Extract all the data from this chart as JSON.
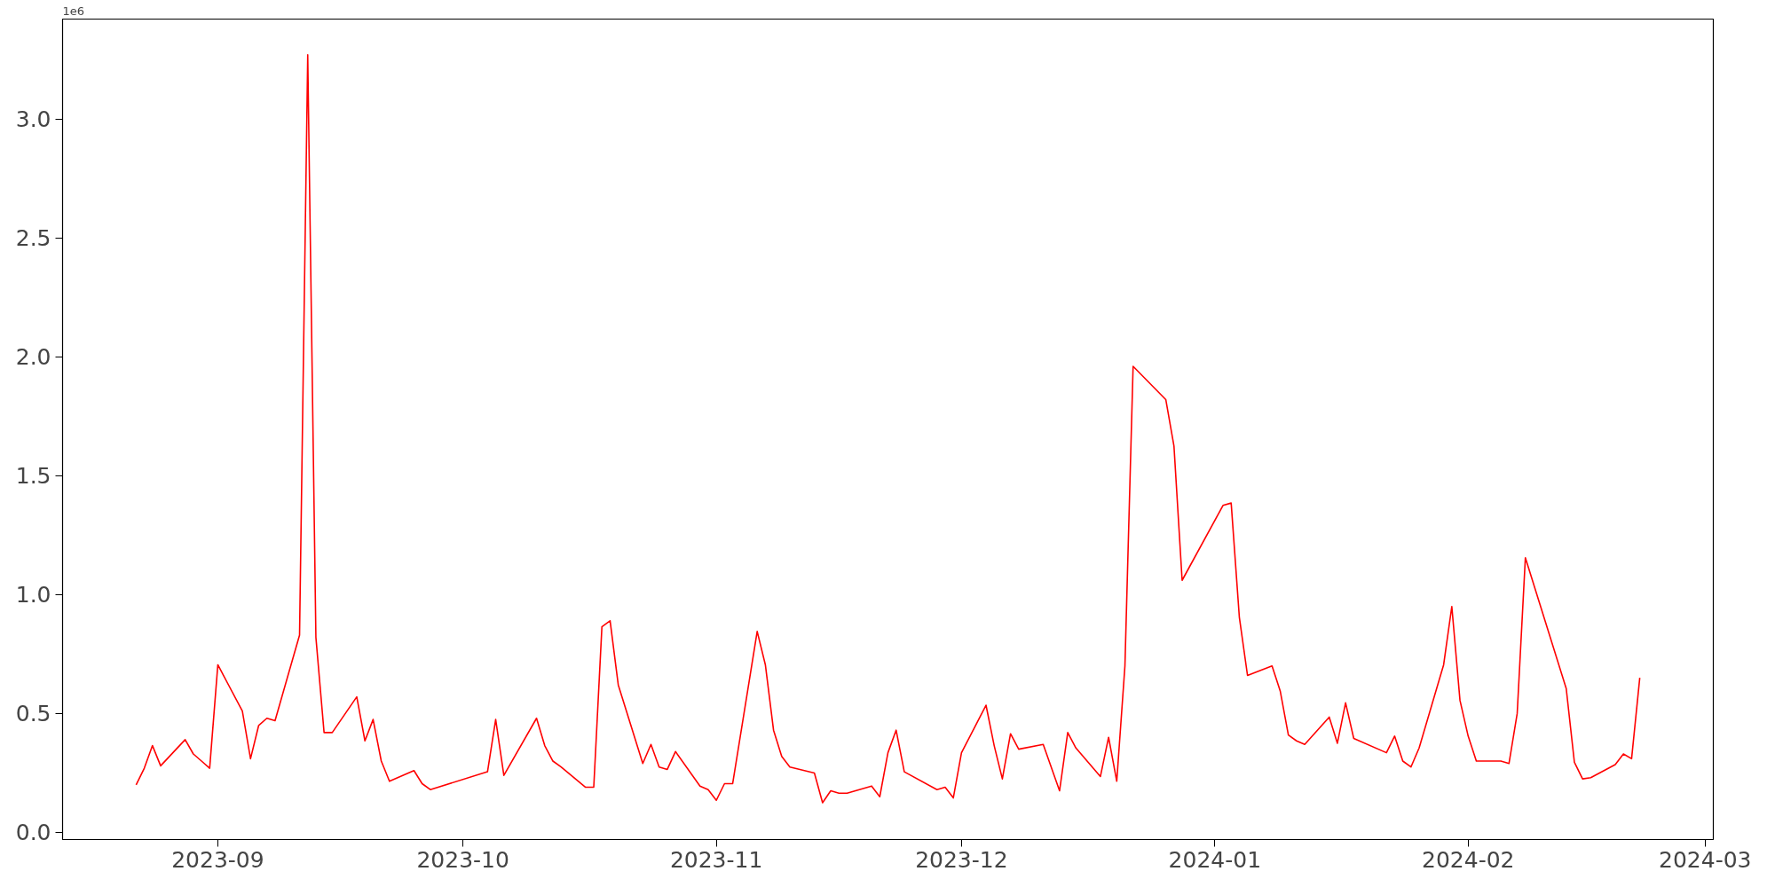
{
  "chart_data": {
    "type": "line",
    "annotations": [
      "1e6"
    ],
    "x": [
      "2023-08-22",
      "2023-08-23",
      "2023-08-24",
      "2023-08-25",
      "2023-08-28",
      "2023-08-29",
      "2023-08-30",
      "2023-08-31",
      "2023-09-01",
      "2023-09-04",
      "2023-09-05",
      "2023-09-06",
      "2023-09-07",
      "2023-09-08",
      "2023-09-11",
      "2023-09-12",
      "2023-09-13",
      "2023-09-14",
      "2023-09-15",
      "2023-09-18",
      "2023-09-19",
      "2023-09-20",
      "2023-09-21",
      "2023-09-22",
      "2023-09-25",
      "2023-09-26",
      "2023-09-27",
      "2023-10-04",
      "2023-10-05",
      "2023-10-06",
      "2023-10-10",
      "2023-10-11",
      "2023-10-12",
      "2023-10-13",
      "2023-10-16",
      "2023-10-17",
      "2023-10-18",
      "2023-10-19",
      "2023-10-20",
      "2023-10-23",
      "2023-10-24",
      "2023-10-25",
      "2023-10-26",
      "2023-10-27",
      "2023-10-30",
      "2023-10-31",
      "2023-11-01",
      "2023-11-02",
      "2023-11-03",
      "2023-11-06",
      "2023-11-07",
      "2023-11-08",
      "2023-11-09",
      "2023-11-10",
      "2023-11-13",
      "2023-11-14",
      "2023-11-15",
      "2023-11-16",
      "2023-11-17",
      "2023-11-20",
      "2023-11-21",
      "2023-11-22",
      "2023-11-23",
      "2023-11-24",
      "2023-11-28",
      "2023-11-29",
      "2023-11-30",
      "2023-12-01",
      "2023-12-04",
      "2023-12-05",
      "2023-12-06",
      "2023-12-07",
      "2023-12-08",
      "2023-12-11",
      "2023-12-13",
      "2023-12-14",
      "2023-12-15",
      "2023-12-18",
      "2023-12-19",
      "2023-12-20",
      "2023-12-21",
      "2023-12-22",
      "2023-12-26",
      "2023-12-27",
      "2023-12-28",
      "2024-01-02",
      "2024-01-03",
      "2024-01-04",
      "2024-01-05",
      "2024-01-08",
      "2024-01-09",
      "2024-01-10",
      "2024-01-11",
      "2024-01-12",
      "2024-01-15",
      "2024-01-16",
      "2024-01-17",
      "2024-01-18",
      "2024-01-22",
      "2024-01-23",
      "2024-01-24",
      "2024-01-25",
      "2024-01-26",
      "2024-01-29",
      "2024-01-30",
      "2024-01-31",
      "2024-02-01",
      "2024-02-02",
      "2024-02-05",
      "2024-02-06",
      "2024-02-07",
      "2024-02-08",
      "2024-02-13",
      "2024-02-14",
      "2024-02-15",
      "2024-02-16",
      "2024-02-19",
      "2024-02-20",
      "2024-02-21",
      "2024-02-22"
    ],
    "series": [
      {
        "color": "#ff0000",
        "values": [
          0.2,
          0.27,
          0.365,
          0.28,
          0.39,
          0.33,
          0.3,
          0.27,
          0.705,
          0.51,
          0.31,
          0.45,
          0.48,
          0.47,
          0.83,
          3.27,
          0.82,
          0.42,
          0.42,
          0.57,
          0.385,
          0.475,
          0.3,
          0.215,
          0.26,
          0.205,
          0.18,
          0.255,
          0.475,
          0.24,
          0.48,
          0.365,
          0.3,
          0.275,
          0.19,
          0.19,
          0.865,
          0.89,
          0.62,
          0.29,
          0.37,
          0.275,
          0.265,
          0.34,
          0.195,
          0.18,
          0.135,
          0.205,
          0.205,
          0.845,
          0.705,
          0.43,
          0.32,
          0.275,
          0.25,
          0.125,
          0.175,
          0.165,
          0.165,
          0.195,
          0.15,
          0.335,
          0.43,
          0.255,
          0.18,
          0.19,
          0.145,
          0.335,
          0.535,
          0.365,
          0.225,
          0.415,
          0.35,
          0.37,
          0.175,
          0.42,
          0.355,
          0.235,
          0.4,
          0.215,
          0.7,
          1.96,
          1.82,
          1.625,
          1.06,
          1.375,
          1.385,
          0.905,
          0.66,
          0.7,
          0.595,
          0.41,
          0.385,
          0.37,
          0.485,
          0.375,
          0.545,
          0.395,
          0.335,
          0.405,
          0.3,
          0.275,
          0.355,
          0.705,
          0.95,
          0.555,
          0.405,
          0.3,
          0.3,
          0.29,
          0.5,
          1.155,
          0.605,
          0.295,
          0.225,
          0.23,
          0.285,
          0.33,
          0.31,
          0.65
        ]
      }
    ],
    "xlim": [
      "2023-08-13",
      "2024-03-02"
    ],
    "xticks": [
      "2023-09",
      "2023-10",
      "2023-11",
      "2023-12",
      "2024-01",
      "2024-02",
      "2024-03"
    ],
    "ylim": [
      -0.03,
      3.42
    ],
    "yticks": [
      {
        "value": 0,
        "label": "0.0"
      },
      0.5,
      {
        "value": 1,
        "label": "1.0"
      },
      1.5,
      {
        "value": 2,
        "label": "2.0"
      },
      2.5,
      {
        "value": 3,
        "label": "3.0"
      }
    ],
    "grid": false,
    "marker": "none",
    "line_style": "solid"
  }
}
